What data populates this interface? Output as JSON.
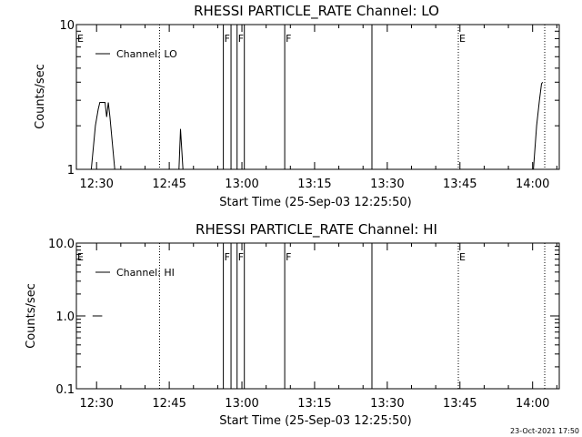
{
  "chart_data": [
    {
      "type": "line",
      "title": "RHESSI PARTICLE_RATE Channel: LO",
      "xlabel": "Start Time (25-Sep-03 12:25:50)",
      "ylabel": "Counts/sec",
      "yscale": "log",
      "xlim": [
        "12:25:50",
        "14:05:30"
      ],
      "ylim": [
        1,
        10
      ],
      "x_ticks": [
        "12:30",
        "12:45",
        "13:00",
        "13:15",
        "13:30",
        "13:45",
        "14:00"
      ],
      "y_ticks": [
        "1",
        "10"
      ],
      "legend": {
        "label": "Channel: LO",
        "position": "top-left"
      },
      "series": [
        {
          "name": "Channel: LO",
          "segments": [
            [
              {
                "x": "12:28:55",
                "y": 1.0
              },
              {
                "x": "12:29:45",
                "y": 2.0
              },
              {
                "x": "12:30:20",
                "y": 2.6
              },
              {
                "x": "12:30:40",
                "y": 2.9
              },
              {
                "x": "12:31:45",
                "y": 2.9
              },
              {
                "x": "12:32:05",
                "y": 2.3
              },
              {
                "x": "12:32:25",
                "y": 2.9
              },
              {
                "x": "12:32:45",
                "y": 2.3
              },
              {
                "x": "12:33:45",
                "y": 1.0
              }
            ],
            [
              {
                "x": "12:47:00",
                "y": 1.0
              },
              {
                "x": "12:47:20",
                "y": 1.9
              },
              {
                "x": "12:47:50",
                "y": 1.0
              }
            ],
            [
              {
                "x": "14:00:10",
                "y": 1.0
              },
              {
                "x": "14:00:50",
                "y": 2.0
              },
              {
                "x": "14:01:25",
                "y": 3.0
              },
              {
                "x": "14:01:50",
                "y": 3.9
              },
              {
                "x": "14:02:05",
                "y": 4.0
              }
            ]
          ]
        }
      ]
    },
    {
      "type": "line",
      "title": "RHESSI PARTICLE_RATE Channel: HI",
      "xlabel": "Start Time (25-Sep-03 12:25:50)",
      "ylabel": "Counts/sec",
      "yscale": "log",
      "xlim": [
        "12:25:50",
        "14:05:30"
      ],
      "ylim": [
        0.1,
        10
      ],
      "x_ticks": [
        "12:30",
        "12:45",
        "13:00",
        "13:15",
        "13:30",
        "13:45",
        "14:00"
      ],
      "y_ticks": [
        "0.1",
        "1.0",
        "10.0"
      ],
      "legend": {
        "label": "Channel: HI",
        "position": "top-left"
      },
      "series": [
        {
          "name": "Channel: HI",
          "segments": [
            [
              {
                "x": "12:29:10",
                "y": 1.0
              },
              {
                "x": "12:31:10",
                "y": 1.0
              }
            ]
          ]
        }
      ]
    }
  ],
  "flags": [
    {
      "x": "12:25:50",
      "label": "E",
      "style": "none"
    },
    {
      "x": "12:43:00",
      "label": "",
      "style": "dotted"
    },
    {
      "x": "12:56:10",
      "label": "F",
      "style": "solid"
    },
    {
      "x": "12:57:45",
      "label": "",
      "style": "solid"
    },
    {
      "x": "12:59:00",
      "label": "F",
      "style": "solid"
    },
    {
      "x": "13:00:30",
      "label": "",
      "style": "solid"
    },
    {
      "x": "13:08:50",
      "label": "F",
      "style": "solid"
    },
    {
      "x": "13:26:50",
      "label": "",
      "style": "solid"
    },
    {
      "x": "13:44:40",
      "label": "E",
      "style": "dotted"
    },
    {
      "x": "14:02:30",
      "label": "",
      "style": "dotted"
    }
  ],
  "footer": {
    "timestamp": "23-Oct-2021 17:50"
  }
}
